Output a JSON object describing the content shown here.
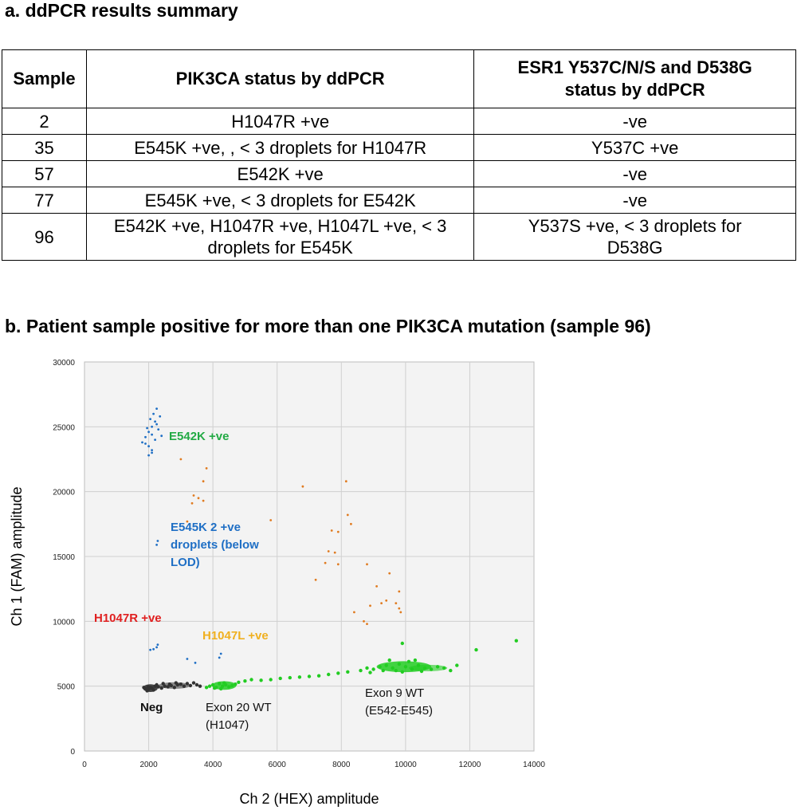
{
  "section_a": {
    "title": "a. ddPCR results summary",
    "headers": [
      "Sample",
      "PIK3CA status by ddPCR",
      "ESR1 Y537C/N/S and D538G status by ddPCR"
    ],
    "rows": [
      {
        "sample": "2",
        "pik3ca": "H1047R +ve",
        "esr1": "-ve"
      },
      {
        "sample": "35",
        "pik3ca": "E545K +ve, , < 3 droplets for H1047R",
        "esr1": "Y537C +ve"
      },
      {
        "sample": "57",
        "pik3ca": "E542K +ve",
        "esr1": "-ve"
      },
      {
        "sample": "77",
        "pik3ca": "E545K +ve, < 3 droplets for E542K",
        "esr1": "-ve"
      },
      {
        "sample": "96",
        "pik3ca": "E542K +ve, H1047R +ve, H1047L +ve, < 3 droplets for E545K",
        "esr1": "Y537S +ve, < 3 droplets for D538G"
      }
    ]
  },
  "section_b": {
    "title": "b. Patient sample positive for more than one PIK3CA mutation (sample 96)"
  },
  "chart_data": {
    "type": "scatter",
    "xlabel": "Ch 2 (HEX) amplitude",
    "ylabel": "Ch 1 (FAM) amplitude",
    "xlim": [
      0,
      14000
    ],
    "ylim": [
      0,
      30000
    ],
    "xticks": [
      "0",
      "2000",
      "4000",
      "6000",
      "8000",
      "10000",
      "12000",
      "14000"
    ],
    "yticks": [
      "0",
      "5000",
      "10000",
      "15000",
      "20000",
      "25000",
      "30000"
    ],
    "grid": true,
    "annotations": {
      "e542k": "E542K +ve",
      "e545k_1": "E545K 2 +ve",
      "e545k_2": "droplets (below",
      "e545k_3": "LOD)",
      "h1047r": "H1047R +ve",
      "h1047l": "H1047L +ve",
      "neg": "Neg",
      "exon20_1": "Exon 20 WT",
      "exon20_2": "(H1047)",
      "exon9_1": "Exon 9 WT",
      "exon9_2": "(E542-E545)"
    },
    "colors": {
      "negative": "#333333",
      "wildtype": "#22cc22",
      "fam_positive": "#1f6fc5",
      "double_positive": "#e07b20",
      "e542k_label": "#22aa44",
      "e545k_label": "#1f6fc5",
      "h1047r_label": "#e02020",
      "h1047l_label": "#f0b020"
    },
    "clusters": [
      {
        "name": "Neg",
        "color": "negative",
        "points": [
          [
            1900,
            4800
          ],
          [
            2000,
            4750
          ],
          [
            2050,
            4900
          ],
          [
            1950,
            4650
          ],
          [
            2100,
            4850
          ],
          [
            2200,
            5000
          ],
          [
            1850,
            4900
          ],
          [
            2300,
            4950
          ],
          [
            2500,
            5000
          ],
          [
            2700,
            5050
          ],
          [
            2900,
            5100
          ],
          [
            3100,
            5000
          ],
          [
            3300,
            5050
          ],
          [
            3500,
            5100
          ],
          [
            2150,
            4700
          ],
          [
            2400,
            4850
          ],
          [
            2600,
            4950
          ],
          [
            2800,
            4900
          ],
          [
            3000,
            5150
          ],
          [
            3200,
            5200
          ],
          [
            1980,
            4950
          ],
          [
            2250,
            5100
          ],
          [
            2450,
            5200
          ],
          [
            2650,
            5150
          ],
          [
            2850,
            5250
          ],
          [
            3400,
            5250
          ],
          [
            3600,
            5000
          ]
        ]
      },
      {
        "name": "Exon 20 WT",
        "color": "wildtype",
        "points": [
          [
            3800,
            4900
          ],
          [
            3900,
            5000
          ],
          [
            4000,
            5100
          ],
          [
            4100,
            4900
          ],
          [
            4200,
            5200
          ],
          [
            4300,
            5000
          ],
          [
            4400,
            5100
          ],
          [
            4500,
            4950
          ],
          [
            4600,
            5050
          ],
          [
            4250,
            4800
          ],
          [
            4350,
            5250
          ],
          [
            4050,
            4850
          ],
          [
            4700,
            5150
          ],
          [
            4800,
            5300
          ],
          [
            5000,
            5400
          ],
          [
            5200,
            5500
          ],
          [
            5500,
            5450
          ],
          [
            5800,
            5500
          ],
          [
            6100,
            5600
          ],
          [
            6400,
            5650
          ],
          [
            6700,
            5700
          ],
          [
            7000,
            5750
          ],
          [
            7300,
            5800
          ],
          [
            7600,
            5900
          ],
          [
            7900,
            6000
          ],
          [
            8200,
            6100
          ]
        ]
      },
      {
        "name": "Exon 9 WT",
        "color": "wildtype",
        "points": [
          [
            8600,
            6200
          ],
          [
            8800,
            6400
          ],
          [
            9000,
            6300
          ],
          [
            9200,
            6500
          ],
          [
            9400,
            6600
          ],
          [
            9600,
            6400
          ],
          [
            9800,
            6700
          ],
          [
            10000,
            6500
          ],
          [
            10200,
            6300
          ],
          [
            10400,
            6600
          ],
          [
            10600,
            6400
          ],
          [
            10800,
            6300
          ],
          [
            11000,
            6500
          ],
          [
            11200,
            6400
          ],
          [
            11400,
            6200
          ],
          [
            9500,
            7000
          ],
          [
            9900,
            6100
          ],
          [
            10100,
            6900
          ],
          [
            9700,
            6200
          ],
          [
            10300,
            7000
          ],
          [
            9300,
            6200
          ],
          [
            10500,
            6150
          ],
          [
            8900,
            6050
          ],
          [
            11600,
            6600
          ],
          [
            12200,
            7800
          ],
          [
            13450,
            8500
          ],
          [
            9900,
            8300
          ]
        ]
      },
      {
        "name": "E542K +ve",
        "color": "fam_positive",
        "points": [
          [
            1800,
            23800
          ],
          [
            1900,
            24200
          ],
          [
            2000,
            24600
          ],
          [
            2100,
            25000
          ],
          [
            2200,
            25400
          ],
          [
            2000,
            23500
          ],
          [
            2100,
            23200
          ],
          [
            2200,
            24000
          ],
          [
            1950,
            24900
          ],
          [
            2050,
            25600
          ],
          [
            2150,
            26000
          ],
          [
            2250,
            26400
          ],
          [
            2300,
            24800
          ],
          [
            2400,
            24300
          ],
          [
            2000,
            22800
          ],
          [
            2100,
            23000
          ],
          [
            1900,
            23700
          ],
          [
            2250,
            25200
          ],
          [
            2350,
            25800
          ],
          [
            2100,
            24400
          ]
        ]
      },
      {
        "name": "E545K 2 +ve droplets (below LOD)",
        "color": "fam_positive",
        "points": [
          [
            2250,
            15900
          ],
          [
            2280,
            16200
          ]
        ]
      },
      {
        "name": "H1047R +ve",
        "color": "fam_positive",
        "points": [
          [
            2050,
            7800
          ],
          [
            2150,
            7850
          ],
          [
            2250,
            8000
          ],
          [
            2280,
            8200
          ]
        ]
      },
      {
        "name": "H1047L +ve",
        "color": "fam_positive",
        "points": [
          [
            3200,
            7100
          ],
          [
            3450,
            6800
          ],
          [
            4200,
            7200
          ],
          [
            4250,
            7500
          ]
        ]
      },
      {
        "name": "double positive",
        "color": "double_positive",
        "points": [
          [
            3000,
            22500
          ],
          [
            3800,
            21800
          ],
          [
            3700,
            20800
          ],
          [
            3400,
            19700
          ],
          [
            3550,
            19500
          ],
          [
            3700,
            19300
          ],
          [
            3350,
            19100
          ],
          [
            3200,
            17700
          ],
          [
            5800,
            17800
          ],
          [
            6800,
            20400
          ],
          [
            8150,
            20800
          ],
          [
            8200,
            18200
          ],
          [
            8300,
            17500
          ],
          [
            7700,
            17000
          ],
          [
            7900,
            16900
          ],
          [
            7600,
            15400
          ],
          [
            7800,
            15300
          ],
          [
            7500,
            14500
          ],
          [
            7900,
            14400
          ],
          [
            7200,
            13200
          ],
          [
            8800,
            14400
          ],
          [
            9500,
            13700
          ],
          [
            9100,
            12700
          ],
          [
            9800,
            12300
          ],
          [
            9400,
            11600
          ],
          [
            9700,
            11400
          ],
          [
            8900,
            11200
          ],
          [
            9800,
            11000
          ],
          [
            9850,
            10700
          ],
          [
            8400,
            10700
          ],
          [
            9250,
            11400
          ],
          [
            8700,
            10000
          ],
          [
            8800,
            9800
          ]
        ]
      }
    ]
  }
}
